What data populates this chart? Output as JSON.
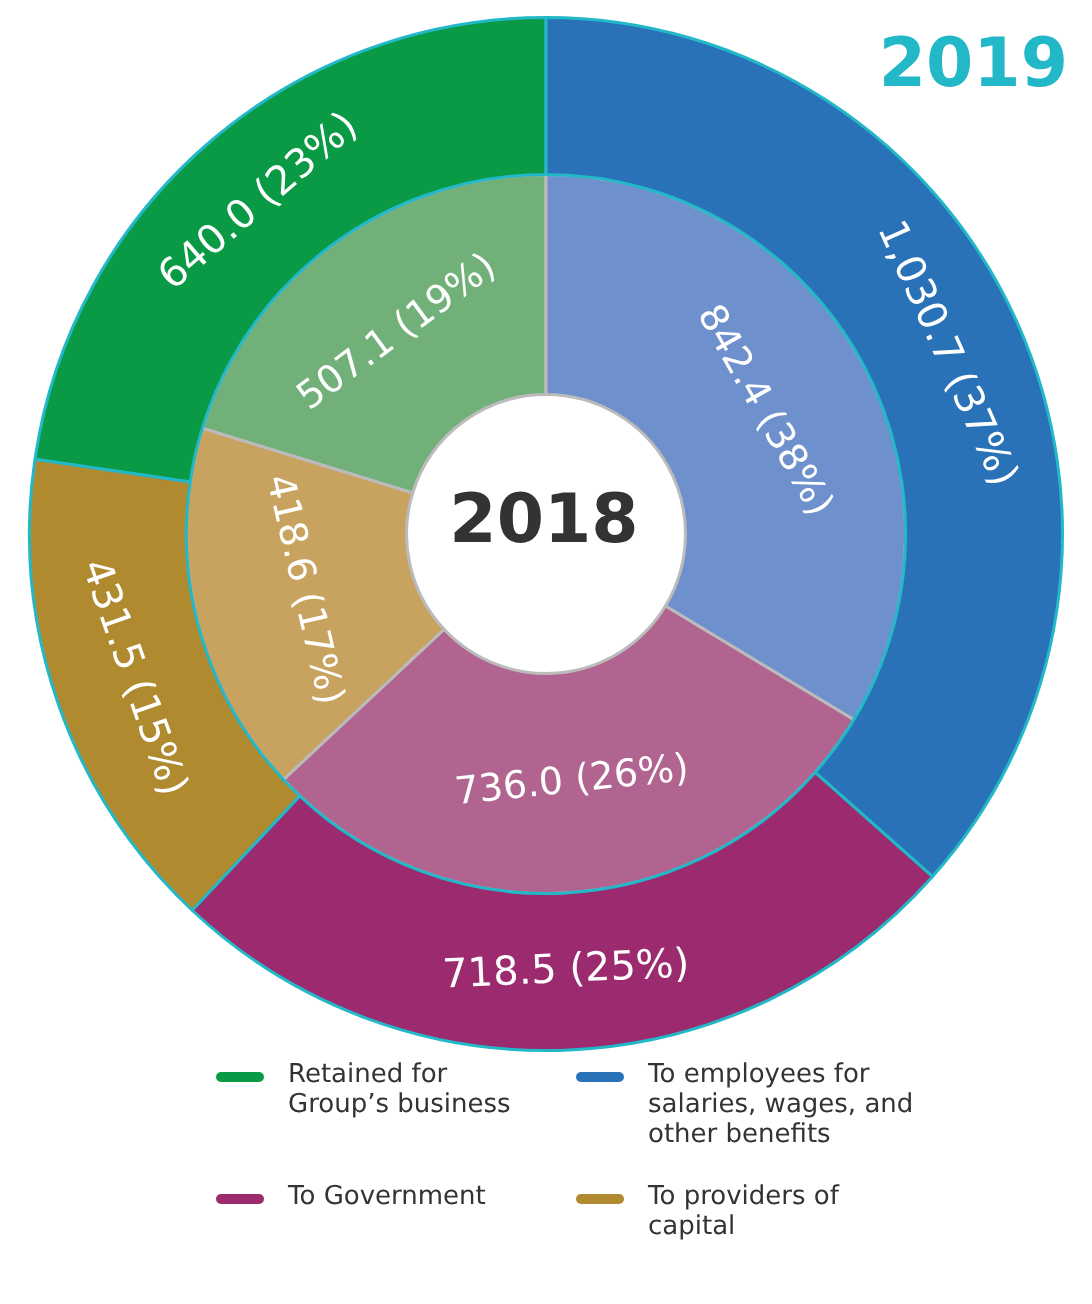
{
  "chart_data": {
    "type": "donut",
    "categories": [
      "Retained for Group’s business",
      "To employees for salaries, wages, and other benefits",
      "To Government",
      "To providers of capital"
    ],
    "series": [
      {
        "name": "2019",
        "values": [
          640.0,
          1030.7,
          718.5,
          431.5
        ],
        "colors": [
          "#0a9a45",
          "#2a72b8",
          "#9b2a6e",
          "#b08a2e"
        ],
        "value_labels": [
          "640.0 (23%)",
          "1,030.7 (37%)",
          "718.5 (25%)",
          "431.5 (15%)"
        ]
      },
      {
        "name": "2018",
        "values": [
          507.1,
          842.4,
          736.0,
          418.6
        ],
        "colors": [
          "#72b07a",
          "#6e90cc",
          "#b0648f",
          "#c8a35f"
        ],
        "value_labels": [
          "507.1 (19%)",
          "842.4 (38%)",
          "736.0 (26%)",
          "418.6 (17%)"
        ]
      }
    ],
    "legend": "bottom"
  }
}
